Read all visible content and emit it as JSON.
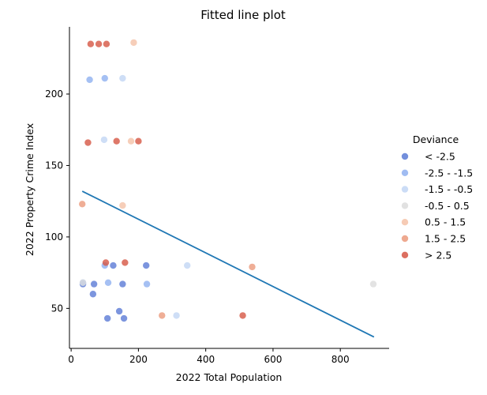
{
  "chart_data": {
    "type": "scatter",
    "title": "Fitted line plot",
    "xlabel": "2022 Total Population",
    "ylabel": "2022 Property Crime Index",
    "xlim": [
      -5,
      945
    ],
    "ylim": [
      22,
      247
    ],
    "xticks": [
      0,
      200,
      400,
      600,
      800
    ],
    "yticks": [
      50,
      100,
      150,
      200
    ],
    "grid": false,
    "legend_placement": "center-right",
    "legend_title": "Deviance",
    "series": [
      {
        "name": "< -2.5",
        "color": "#5b7bd6",
        "points": [
          [
            35,
            67
          ],
          [
            68,
            67
          ],
          [
            65,
            60
          ],
          [
            108,
            43
          ],
          [
            125,
            80
          ],
          [
            143,
            48
          ],
          [
            153,
            67
          ],
          [
            157,
            43
          ],
          [
            223,
            80
          ]
        ]
      },
      {
        "name": "-2.5 - -1.5",
        "color": "#8fb0f0",
        "points": [
          [
            35,
            68
          ],
          [
            55,
            210
          ],
          [
            100,
            80
          ],
          [
            100,
            211
          ],
          [
            110,
            68
          ],
          [
            225,
            67
          ]
        ]
      },
      {
        "name": "-1.5 - -0.5",
        "color": "#c2d6f4",
        "points": [
          [
            98,
            168
          ],
          [
            153,
            211
          ],
          [
            313,
            45
          ],
          [
            345,
            80
          ]
        ]
      },
      {
        "name": "-0.5 - 0.5",
        "color": "#dcdcdc",
        "points": [
          [
            35,
            68
          ],
          [
            898,
            67
          ]
        ]
      },
      {
        "name": "0.5 - 1.5",
        "color": "#f4c2a8",
        "points": [
          [
            153,
            122
          ],
          [
            178,
            167
          ],
          [
            186,
            236
          ]
        ]
      },
      {
        "name": "1.5 - 2.5",
        "color": "#eb9a7c",
        "points": [
          [
            33,
            123
          ],
          [
            270,
            45
          ],
          [
            538,
            79
          ]
        ]
      },
      {
        "name": "> 2.5",
        "color": "#d65644",
        "points": [
          [
            50,
            166
          ],
          [
            58,
            235
          ],
          [
            82,
            235
          ],
          [
            103,
            82
          ],
          [
            105,
            235
          ],
          [
            135,
            167
          ],
          [
            160,
            82
          ],
          [
            200,
            167
          ],
          [
            510,
            45
          ]
        ]
      }
    ],
    "fitted_line": {
      "color": "#1f77b4",
      "points": [
        [
          33,
          132
        ],
        [
          900,
          30
        ]
      ]
    }
  }
}
